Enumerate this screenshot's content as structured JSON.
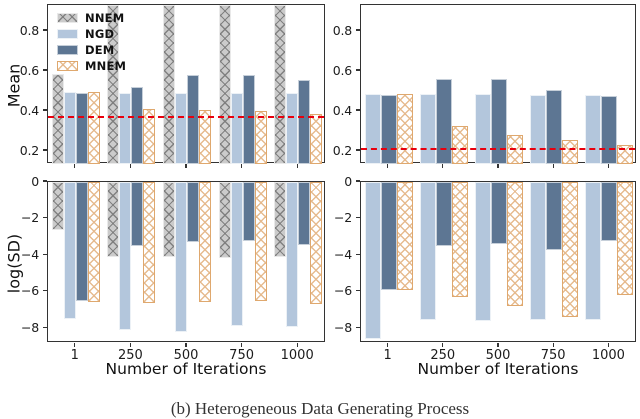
{
  "figure": {
    "caption": "(b) Heterogeneous Data Generating Process",
    "legend": {
      "position": "upper-left-of-first-panel",
      "items": [
        {
          "label": "NNEM",
          "key": "NNEM",
          "swatch": "gray-cross-hatch"
        },
        {
          "label": "NGD",
          "key": "NGD",
          "swatch": "light-blue-solid"
        },
        {
          "label": "DEM",
          "key": "DEM",
          "swatch": "dark-slate-blue-solid"
        },
        {
          "label": "MNEM",
          "key": "MNEM",
          "swatch": "orange-cross-hatch"
        }
      ]
    },
    "colors": {
      "nnem_fill": "#cbcbcb",
      "nnem_hatch": "#7d7d7d",
      "ngd_fill": "#b3c6dc",
      "dem_fill": "#5d7693",
      "mnem_hatch": "#dfa86e",
      "reference_line": "#e8000d",
      "spine": "#333333"
    }
  },
  "chart_data": [
    {
      "id": "mean-left",
      "type": "bar",
      "title": "",
      "ylabel": "Mean",
      "xlabel": "",
      "categories": [
        "1",
        "250",
        "500",
        "750",
        "1000"
      ],
      "ylim": [
        0.135,
        0.93
      ],
      "yticks": [
        0.2,
        0.4,
        0.6,
        0.8
      ],
      "ytick_labels": [
        "0.2",
        "0.4",
        "0.6",
        "0.8"
      ],
      "show_xtick_labels": false,
      "grid": false,
      "reference_hline": 0.37,
      "series": [
        {
          "name": "NNEM",
          "values": [
            0.585,
            0.95,
            0.95,
            0.95,
            0.95
          ],
          "clipped_above_axis": [
            false,
            true,
            true,
            true,
            true
          ]
        },
        {
          "name": "NGD",
          "values": [
            0.493,
            0.49,
            0.49,
            0.488,
            0.488
          ]
        },
        {
          "name": "DEM",
          "values": [
            0.49,
            0.52,
            0.578,
            0.578,
            0.556
          ]
        },
        {
          "name": "MNEM",
          "values": [
            0.493,
            0.408,
            0.406,
            0.399,
            0.387
          ]
        }
      ]
    },
    {
      "id": "mean-right",
      "type": "bar",
      "title": "",
      "ylabel": "",
      "xlabel": "",
      "categories": [
        "1",
        "250",
        "500",
        "750",
        "1000"
      ],
      "ylim": [
        0.135,
        0.93
      ],
      "yticks": [
        0.2,
        0.4,
        0.6,
        0.8
      ],
      "ytick_labels": [
        "0.2",
        "0.4",
        "0.6",
        "0.8"
      ],
      "show_xtick_labels": false,
      "grid": false,
      "reference_hline": 0.21,
      "series": [
        {
          "name": "NGD",
          "values": [
            0.483,
            0.487,
            0.483,
            0.479,
            0.482
          ]
        },
        {
          "name": "DEM",
          "values": [
            0.479,
            0.56,
            0.56,
            0.505,
            0.476
          ]
        },
        {
          "name": "MNEM",
          "values": [
            0.484,
            0.325,
            0.278,
            0.255,
            0.229
          ]
        }
      ]
    },
    {
      "id": "logsd-left",
      "type": "bar",
      "title": "",
      "ylabel": "log(SD)",
      "xlabel": "Number of Iterations",
      "categories": [
        "1",
        "250",
        "500",
        "750",
        "1000"
      ],
      "ylim": [
        -8.8,
        0
      ],
      "yticks": [
        0,
        -2,
        -4,
        -6,
        -8
      ],
      "ytick_labels": [
        "0",
        "−2",
        "−4",
        "−6",
        "−8"
      ],
      "show_xtick_labels": true,
      "grid": false,
      "series": [
        {
          "name": "NNEM",
          "values": [
            -2.6,
            -4.1,
            -4.1,
            -4.15,
            -4.1
          ]
        },
        {
          "name": "NGD",
          "values": [
            -7.5,
            -8.1,
            -8.2,
            -7.85,
            -7.95
          ]
        },
        {
          "name": "DEM",
          "values": [
            -6.5,
            -3.5,
            -3.3,
            -3.2,
            -3.45
          ]
        },
        {
          "name": "MNEM",
          "values": [
            -6.55,
            -6.6,
            -6.55,
            -6.5,
            -6.65
          ]
        }
      ]
    },
    {
      "id": "logsd-right",
      "type": "bar",
      "title": "",
      "ylabel": "",
      "xlabel": "Number of Iterations",
      "categories": [
        "1",
        "250",
        "500",
        "750",
        "1000"
      ],
      "ylim": [
        -8.8,
        0
      ],
      "yticks": [
        0,
        -2,
        -4,
        -6,
        -8
      ],
      "ytick_labels": [
        "0",
        "−2",
        "−4",
        "−6",
        "−8"
      ],
      "show_xtick_labels": true,
      "grid": false,
      "series": [
        {
          "name": "NGD",
          "values": [
            -8.6,
            -7.55,
            -7.6,
            -7.55,
            -7.55
          ]
        },
        {
          "name": "DEM",
          "values": [
            -5.9,
            -3.5,
            -3.4,
            -3.7,
            -3.2
          ]
        },
        {
          "name": "MNEM",
          "values": [
            -5.9,
            -6.3,
            -6.8,
            -7.4,
            -6.15
          ]
        }
      ]
    }
  ]
}
